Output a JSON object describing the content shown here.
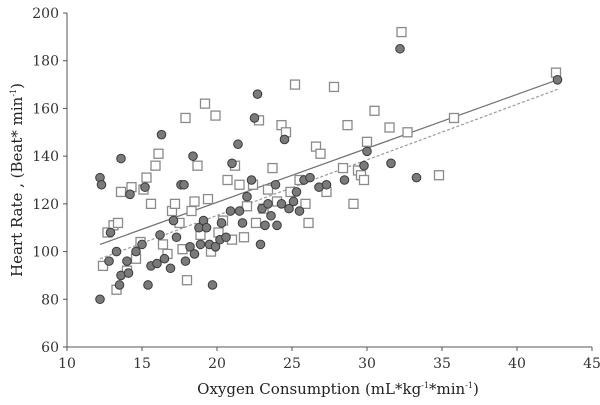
{
  "chart_data": {
    "type": "scatter",
    "xlabel": "Oxygen Consumption (mL*kg",
    "xlabel_sup1": "-1",
    "xlabel_mid": "*min",
    "xlabel_sup2": "-1",
    "xlabel_end": ")",
    "ylabel": "Heart Rate , (Beat* min",
    "ylabel_sup": "-1",
    "ylabel_end": ")",
    "xlim": [
      10,
      45
    ],
    "ylim": [
      60,
      200
    ],
    "x_ticks": [
      "10",
      "15",
      "20",
      "25",
      "30",
      "35",
      "40",
      "45"
    ],
    "y_ticks": [
      "60",
      "80",
      "100",
      "120",
      "140",
      "160",
      "180",
      "200"
    ],
    "grid": false,
    "colors": {
      "circle_fill": "#7a7a7a",
      "circle_stroke": "#3a3a3a",
      "square_fill": "#ffffff",
      "square_stroke": "#8a8a8a",
      "axis": "#555555",
      "line_solid": "#707070",
      "line_dashed": "#9a9a9a"
    },
    "series": [
      {
        "marker": "circle",
        "trend": [
          [
            12.2,
            103
          ],
          [
            42.7,
            172
          ]
        ],
        "points": [
          [
            12.2,
            131
          ],
          [
            12.3,
            128
          ],
          [
            12.2,
            80
          ],
          [
            12.8,
            96
          ],
          [
            12.9,
            108
          ],
          [
            13.3,
            100
          ],
          [
            13.6,
            139
          ],
          [
            13.6,
            90
          ],
          [
            13.5,
            86
          ],
          [
            14.1,
            91
          ],
          [
            14.0,
            96
          ],
          [
            14.2,
            124
          ],
          [
            14.6,
            100
          ],
          [
            15.0,
            103
          ],
          [
            15.2,
            127
          ],
          [
            15.4,
            86
          ],
          [
            15.6,
            94
          ],
          [
            16.0,
            95
          ],
          [
            16.2,
            107
          ],
          [
            16.3,
            149
          ],
          [
            16.5,
            97
          ],
          [
            16.9,
            93
          ],
          [
            17.1,
            113
          ],
          [
            17.3,
            106
          ],
          [
            17.6,
            128
          ],
          [
            17.8,
            128
          ],
          [
            17.9,
            96
          ],
          [
            18.2,
            102
          ],
          [
            18.4,
            140
          ],
          [
            18.5,
            99
          ],
          [
            18.8,
            110
          ],
          [
            18.9,
            103
          ],
          [
            19.1,
            113
          ],
          [
            19.3,
            110
          ],
          [
            19.5,
            103
          ],
          [
            19.7,
            86
          ],
          [
            19.9,
            102
          ],
          [
            20.2,
            105
          ],
          [
            20.3,
            112
          ],
          [
            20.6,
            106
          ],
          [
            20.9,
            117
          ],
          [
            21.0,
            137
          ],
          [
            21.4,
            145
          ],
          [
            21.5,
            117
          ],
          [
            21.7,
            112
          ],
          [
            22.0,
            123
          ],
          [
            22.3,
            130
          ],
          [
            22.5,
            156
          ],
          [
            22.7,
            166
          ],
          [
            22.9,
            103
          ],
          [
            23.0,
            118
          ],
          [
            23.2,
            111
          ],
          [
            23.4,
            120
          ],
          [
            23.6,
            115
          ],
          [
            23.9,
            128
          ],
          [
            24.0,
            111
          ],
          [
            24.3,
            120
          ],
          [
            24.5,
            147
          ],
          [
            24.8,
            118
          ],
          [
            25.1,
            121
          ],
          [
            25.3,
            125
          ],
          [
            25.5,
            117
          ],
          [
            25.8,
            130
          ],
          [
            26.2,
            131
          ],
          [
            26.8,
            127
          ],
          [
            27.3,
            128
          ],
          [
            28.5,
            130
          ],
          [
            29.8,
            136
          ],
          [
            30.0,
            142
          ],
          [
            31.6,
            137
          ],
          [
            32.2,
            185
          ],
          [
            33.3,
            131
          ],
          [
            42.7,
            172
          ]
        ]
      },
      {
        "marker": "square",
        "trend": [
          [
            12.2,
            97
          ],
          [
            42.7,
            168
          ]
        ],
        "points": [
          [
            12.4,
            94
          ],
          [
            12.7,
            108
          ],
          [
            13.1,
            111
          ],
          [
            13.3,
            84
          ],
          [
            13.4,
            112
          ],
          [
            13.6,
            125
          ],
          [
            14.0,
            92
          ],
          [
            14.3,
            127
          ],
          [
            14.6,
            97
          ],
          [
            14.9,
            104
          ],
          [
            15.1,
            126
          ],
          [
            15.3,
            131
          ],
          [
            15.6,
            120
          ],
          [
            15.9,
            136
          ],
          [
            16.1,
            141
          ],
          [
            16.4,
            103
          ],
          [
            16.7,
            99
          ],
          [
            17.0,
            117
          ],
          [
            17.2,
            120
          ],
          [
            17.5,
            112
          ],
          [
            17.7,
            101
          ],
          [
            17.9,
            156
          ],
          [
            18.0,
            88
          ],
          [
            18.3,
            117
          ],
          [
            18.5,
            121
          ],
          [
            18.7,
            136
          ],
          [
            18.9,
            107
          ],
          [
            19.2,
            162
          ],
          [
            19.4,
            122
          ],
          [
            19.6,
            100
          ],
          [
            19.9,
            157
          ],
          [
            20.1,
            108
          ],
          [
            20.4,
            113
          ],
          [
            20.7,
            130
          ],
          [
            21.0,
            105
          ],
          [
            21.2,
            136
          ],
          [
            21.5,
            128
          ],
          [
            21.8,
            106
          ],
          [
            22.0,
            119
          ],
          [
            22.4,
            128
          ],
          [
            22.6,
            112
          ],
          [
            22.8,
            155
          ],
          [
            23.1,
            118
          ],
          [
            23.4,
            126
          ],
          [
            23.7,
            135
          ],
          [
            24.0,
            121
          ],
          [
            24.3,
            153
          ],
          [
            24.6,
            150
          ],
          [
            24.9,
            125
          ],
          [
            25.2,
            170
          ],
          [
            25.5,
            130
          ],
          [
            25.9,
            120
          ],
          [
            26.1,
            112
          ],
          [
            26.6,
            144
          ],
          [
            26.9,
            141
          ],
          [
            27.3,
            125
          ],
          [
            27.8,
            169
          ],
          [
            28.4,
            135
          ],
          [
            28.7,
            153
          ],
          [
            29.1,
            120
          ],
          [
            29.4,
            134
          ],
          [
            29.6,
            132
          ],
          [
            29.8,
            130
          ],
          [
            30.0,
            146
          ],
          [
            30.5,
            159
          ],
          [
            31.5,
            152
          ],
          [
            32.3,
            192
          ],
          [
            32.7,
            150
          ],
          [
            34.8,
            132
          ],
          [
            35.8,
            156
          ],
          [
            42.6,
            175
          ]
        ]
      }
    ]
  }
}
